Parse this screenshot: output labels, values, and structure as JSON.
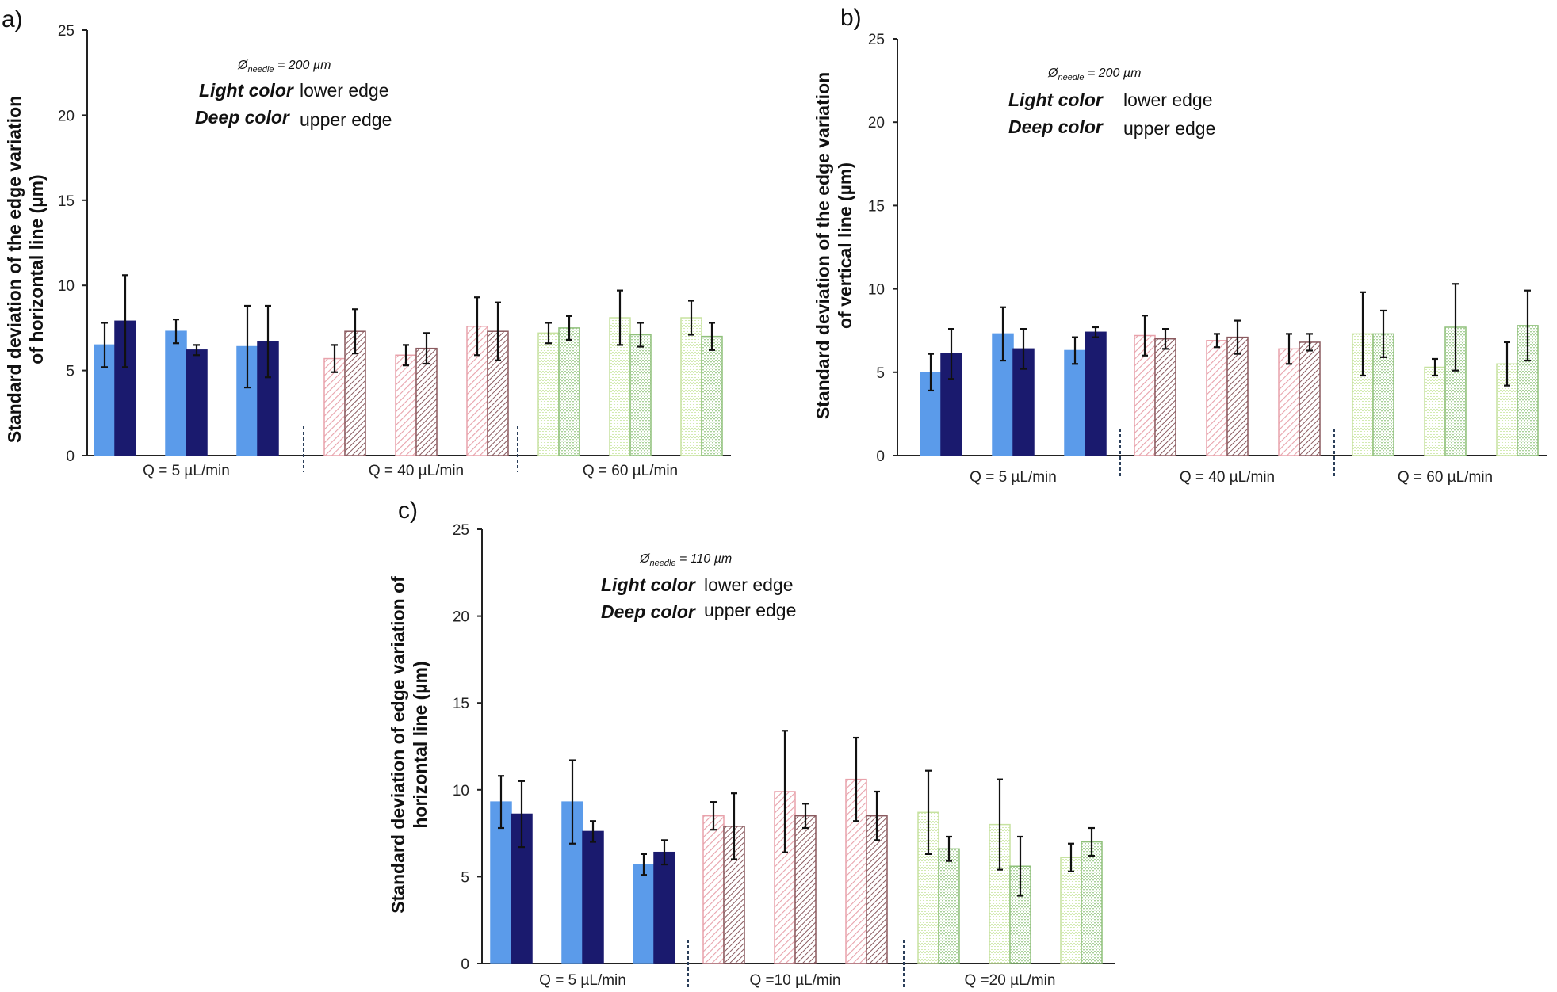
{
  "chart_data": [
    {
      "panel": "a)",
      "type": "bar",
      "ylabel_lines": [
        "Standard deviation of the edge variation",
        "of horizontal line (µm)"
      ],
      "ylim": [
        0,
        25
      ],
      "yticks": [
        0,
        5,
        10,
        15,
        20,
        25
      ],
      "needle": "200 µm",
      "legend_lines": [
        {
          "bold": "Light color",
          "plain": "lower edge"
        },
        {
          "bold": "Deep color",
          "plain": "upper edge"
        }
      ],
      "groups": [
        {
          "label": "Q = 5 µL/min",
          "palette": "blue",
          "pairs": [
            {
              "lower": {
                "value": 6.5,
                "err": 1.3
              },
              "upper": {
                "value": 7.9,
                "err": 2.7
              }
            },
            {
              "lower": {
                "value": 7.3,
                "err": 0.7
              },
              "upper": {
                "value": 6.2,
                "err": 0.3
              }
            },
            {
              "lower": {
                "value": 6.4,
                "err": 2.4
              },
              "upper": {
                "value": 6.7,
                "err": 2.1
              }
            }
          ]
        },
        {
          "label": "Q = 40 µL/min",
          "palette": "pink",
          "pairs": [
            {
              "lower": {
                "value": 5.7,
                "err": 0.8
              },
              "upper": {
                "value": 7.3,
                "err": 1.3
              }
            },
            {
              "lower": {
                "value": 5.9,
                "err": 0.6
              },
              "upper": {
                "value": 6.3,
                "err": 0.9
              }
            },
            {
              "lower": {
                "value": 7.6,
                "err": 1.7
              },
              "upper": {
                "value": 7.3,
                "err": 1.7
              }
            }
          ]
        },
        {
          "label": "Q = 60 µL/min",
          "palette": "green",
          "pairs": [
            {
              "lower": {
                "value": 7.2,
                "err": 0.6
              },
              "upper": {
                "value": 7.5,
                "err": 0.7
              }
            },
            {
              "lower": {
                "value": 8.1,
                "err": 1.6
              },
              "upper": {
                "value": 7.1,
                "err": 0.7
              }
            },
            {
              "lower": {
                "value": 8.1,
                "err": 1.0
              },
              "upper": {
                "value": 7.0,
                "err": 0.8
              }
            }
          ]
        }
      ]
    },
    {
      "panel": "b)",
      "type": "bar",
      "ylabel_lines": [
        "Standard deviation of the edge variation",
        "of vertical line (µm)"
      ],
      "ylim": [
        0,
        25
      ],
      "yticks": [
        0,
        5,
        10,
        15,
        20,
        25
      ],
      "needle": "200 µm",
      "legend_lines": [
        {
          "bold": "Light color",
          "plain": "lower edge"
        },
        {
          "bold": "Deep color",
          "plain": "upper edge"
        }
      ],
      "groups": [
        {
          "label": "Q = 5 µL/min",
          "palette": "blue",
          "pairs": [
            {
              "lower": {
                "value": 5.0,
                "err": 1.1
              },
              "upper": {
                "value": 6.1,
                "err": 1.5
              }
            },
            {
              "lower": {
                "value": 7.3,
                "err": 1.6
              },
              "upper": {
                "value": 6.4,
                "err": 1.2
              }
            },
            {
              "lower": {
                "value": 6.3,
                "err": 0.8
              },
              "upper": {
                "value": 7.4,
                "err": 0.3
              }
            }
          ]
        },
        {
          "label": "Q = 40 µL/min",
          "palette": "pink",
          "pairs": [
            {
              "lower": {
                "value": 7.2,
                "err": 1.2
              },
              "upper": {
                "value": 7.0,
                "err": 0.6
              }
            },
            {
              "lower": {
                "value": 6.9,
                "err": 0.4
              },
              "upper": {
                "value": 7.1,
                "err": 1.0
              }
            },
            {
              "lower": {
                "value": 6.4,
                "err": 0.9
              },
              "upper": {
                "value": 6.8,
                "err": 0.5
              }
            }
          ]
        },
        {
          "label": "Q = 60 µL/min",
          "palette": "green",
          "pairs": [
            {
              "lower": {
                "value": 7.3,
                "err": 2.5
              },
              "upper": {
                "value": 7.3,
                "err": 1.4
              }
            },
            {
              "lower": {
                "value": 5.3,
                "err": 0.5
              },
              "upper": {
                "value": 7.7,
                "err": 2.6
              }
            },
            {
              "lower": {
                "value": 5.5,
                "err": 1.3
              },
              "upper": {
                "value": 7.8,
                "err": 2.1
              }
            }
          ]
        }
      ]
    },
    {
      "panel": "c)",
      "type": "bar",
      "ylabel_lines": [
        "Standard deviation of edge variation of",
        "horizontal line (µm)"
      ],
      "ylim": [
        0,
        25
      ],
      "yticks": [
        0,
        5,
        10,
        15,
        20,
        25
      ],
      "needle": "110 µm",
      "legend_lines": [
        {
          "bold": "Light color",
          "plain": "lower edge"
        },
        {
          "bold": "Deep color",
          "plain": "upper edge"
        }
      ],
      "groups": [
        {
          "label": "Q = 5 µL/min",
          "palette": "blue",
          "pairs": [
            {
              "lower": {
                "value": 9.3,
                "err": 1.5
              },
              "upper": {
                "value": 8.6,
                "err": 1.9
              }
            },
            {
              "lower": {
                "value": 9.3,
                "err": 2.4
              },
              "upper": {
                "value": 7.6,
                "err": 0.6
              }
            },
            {
              "lower": {
                "value": 5.7,
                "err": 0.6
              },
              "upper": {
                "value": 6.4,
                "err": 0.7
              }
            }
          ]
        },
        {
          "label": "Q =10 µL/min",
          "palette": "pink",
          "pairs": [
            {
              "lower": {
                "value": 8.5,
                "err": 0.8
              },
              "upper": {
                "value": 7.9,
                "err": 1.9
              }
            },
            {
              "lower": {
                "value": 9.9,
                "err": 3.5
              },
              "upper": {
                "value": 8.5,
                "err": 0.7
              }
            },
            {
              "lower": {
                "value": 10.6,
                "err": 2.4
              },
              "upper": {
                "value": 8.5,
                "err": 1.4
              }
            }
          ]
        },
        {
          "label": "Q =20 µL/min",
          "palette": "green",
          "pairs": [
            {
              "lower": {
                "value": 8.7,
                "err": 2.4
              },
              "upper": {
                "value": 6.6,
                "err": 0.7
              }
            },
            {
              "lower": {
                "value": 8.0,
                "err": 2.6
              },
              "upper": {
                "value": 5.6,
                "err": 1.7
              }
            },
            {
              "lower": {
                "value": 6.1,
                "err": 0.8
              },
              "upper": {
                "value": 7.0,
                "err": 0.8
              }
            }
          ]
        }
      ]
    }
  ],
  "colors": {
    "blue_light": "#5b9bea",
    "blue_deep": "#1a1a6e",
    "pink_light": "#e8a2ab",
    "pink_deep": "#8a5a5f",
    "green_light": "#c7e2a0",
    "green_deep": "#8fc07a"
  }
}
